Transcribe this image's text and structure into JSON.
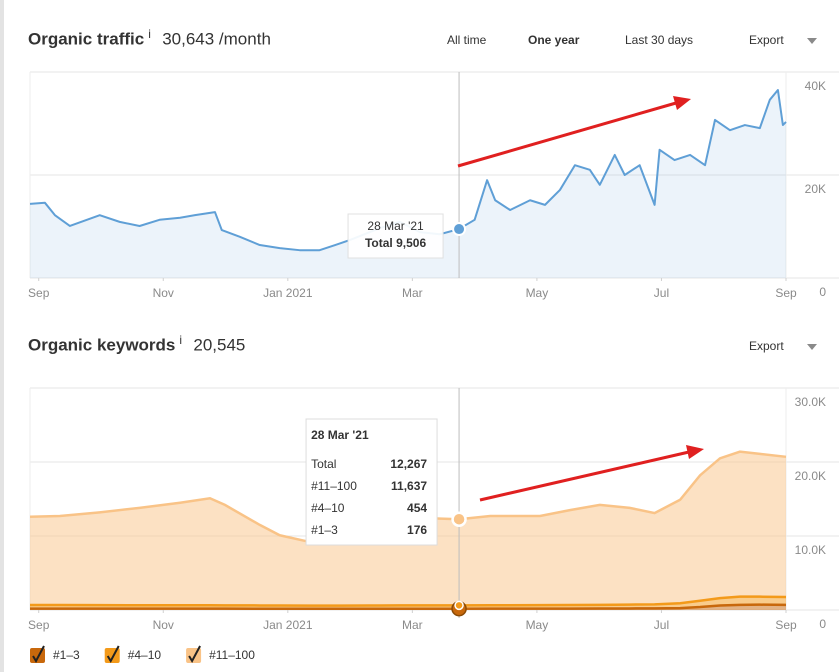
{
  "chart_data": [
    {
      "type": "line",
      "title": "Organic traffic",
      "info": "i",
      "summary": "30,643 /month",
      "periods": [
        "All time",
        "One year",
        "Last 30 days"
      ],
      "active_period": 1,
      "export": "Export",
      "xlim": [
        -0.14,
        12
      ],
      "xticks": [
        {
          "value": 0,
          "label": "Sep"
        },
        {
          "value": 2,
          "label": "Nov"
        },
        {
          "value": 4,
          "label": "Jan 2021"
        },
        {
          "value": 6,
          "label": "Mar"
        },
        {
          "value": 8,
          "label": "May"
        },
        {
          "value": 10,
          "label": "Jul"
        },
        {
          "value": 12,
          "label": "Sep"
        }
      ],
      "ylim": [
        0,
        40000
      ],
      "yticks": [
        0,
        {
          "value": 20000,
          "label": "20K"
        },
        {
          "value": 40000,
          "label": "40K"
        }
      ],
      "grid": true,
      "x": [
        -0.14,
        0.1,
        0.26,
        0.5,
        0.98,
        1.3,
        1.62,
        1.94,
        2.27,
        2.51,
        2.83,
        2.94,
        3.23,
        3.55,
        3.87,
        4.19,
        4.51,
        4.76,
        5.0,
        5.48,
        5.8,
        6.12,
        6.44,
        6.75,
        7.0,
        7.2,
        7.33,
        7.57,
        7.89,
        8.13,
        8.37,
        8.61,
        8.85,
        9.01,
        9.25,
        9.41,
        9.65,
        9.89,
        9.97,
        10.21,
        10.46,
        10.7,
        10.86,
        11.1,
        11.34,
        11.58,
        11.74,
        11.87,
        11.95,
        12.0
      ],
      "series": [
        {
          "name": "Total",
          "color": "#5f9fd6",
          "values": [
            14400,
            14600,
            12200,
            10100,
            12200,
            10900,
            10100,
            11300,
            11700,
            12200,
            12800,
            9300,
            8000,
            6400,
            5800,
            5400,
            5400,
            6400,
            7400,
            9700,
            10900,
            8900,
            8500,
            9506,
            11300,
            19000,
            15100,
            13200,
            15100,
            14200,
            17100,
            21900,
            21000,
            18100,
            23900,
            20000,
            21900,
            14200,
            24900,
            22900,
            23900,
            21900,
            30700,
            28700,
            29700,
            29100,
            34600,
            36500,
            29700,
            30300
          ]
        }
      ],
      "tooltip": {
        "title": "28 Mar '21",
        "x": 6.75,
        "values": [
          9506
        ],
        "value_labels": [
          "9,506"
        ]
      }
    },
    {
      "type": "area",
      "title": "Organic keywords",
      "info": "i",
      "summary": "20,545",
      "export": "Export",
      "xlim": [
        -0.14,
        12
      ],
      "xticks": [
        {
          "value": 0,
          "label": "Sep"
        },
        {
          "value": 2,
          "label": "Nov"
        },
        {
          "value": 4,
          "label": "Jan 2021"
        },
        {
          "value": 6,
          "label": "Mar"
        },
        {
          "value": 8,
          "label": "May"
        },
        {
          "value": 10,
          "label": "Jul"
        },
        {
          "value": 12,
          "label": "Sep"
        }
      ],
      "ylim": [
        0,
        30000
      ],
      "yticks": [
        0,
        {
          "value": 10000,
          "label": "10.0K"
        },
        {
          "value": 20000,
          "label": "20.0K"
        },
        {
          "value": 30000,
          "label": "30.0K"
        }
      ],
      "grid": true,
      "legend": true,
      "x": [
        -0.14,
        0.34,
        0.98,
        1.62,
        2.27,
        2.75,
        2.99,
        3.55,
        3.87,
        4.35,
        4.84,
        5.32,
        5.8,
        6.28,
        6.75,
        7.25,
        8.05,
        8.53,
        9.01,
        9.49,
        9.89,
        10.3,
        10.62,
        10.94,
        11.26,
        11.58,
        12.0
      ],
      "series": [
        {
          "name": "#1–3",
          "color": "#c8680c",
          "values": [
            190,
            190,
            185,
            180,
            180,
            180,
            180,
            175,
            170,
            165,
            165,
            170,
            175,
            176,
            176,
            180,
            185,
            190,
            200,
            210,
            220,
            260,
            400,
            600,
            700,
            720,
            700
          ]
        },
        {
          "name": "#4–10",
          "color": "#f39a1a",
          "values": [
            480,
            480,
            470,
            460,
            460,
            460,
            450,
            440,
            430,
            420,
            420,
            430,
            445,
            450,
            454,
            460,
            470,
            480,
            500,
            520,
            540,
            650,
            850,
            1000,
            1100,
            1080,
            1050
          ]
        },
        {
          "name": "#11–100",
          "color": "#f9c387",
          "values": [
            11930,
            12030,
            12545,
            13160,
            13860,
            14460,
            13570,
            10885,
            9500,
            8615,
            8915,
            10200,
            11280,
            11774,
            11637,
            12060,
            12045,
            12830,
            13500,
            13070,
            12340,
            13990,
            16950,
            18900,
            19600,
            19300,
            18950
          ]
        }
      ],
      "tooltip": {
        "title": "28 Mar '21",
        "x": 6.75,
        "total_name": "Total",
        "total": 12267,
        "total_label": "12,267",
        "values": [
          176,
          454,
          11637
        ],
        "value_labels": [
          "176",
          "454",
          "11,637"
        ]
      }
    }
  ]
}
